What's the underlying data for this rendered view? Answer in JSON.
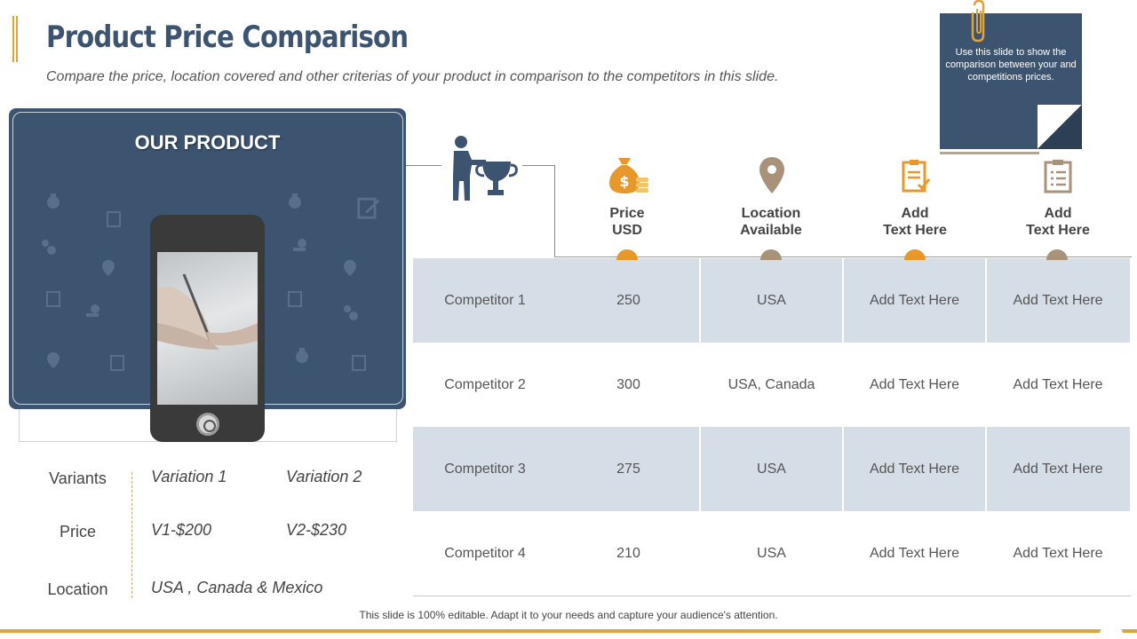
{
  "title": "Product Price Comparison",
  "subtitle": "Compare the price, location covered and other criterias of your product in comparison to the competitors in this slide.",
  "note": {
    "text": "Use this slide to show the comparison between your and competitions prices."
  },
  "product": {
    "title": "OUR PRODUCT",
    "rows": [
      {
        "label": "Variants",
        "values": [
          "Variation 1",
          "Variation 2"
        ]
      },
      {
        "label": "Price",
        "values": [
          "V1-$200",
          "V2-$230"
        ]
      },
      {
        "label": "Location",
        "values": [
          "USA , Canada & Mexico"
        ]
      }
    ]
  },
  "table": {
    "columns": [
      {
        "line1": "Price",
        "line2": "USD",
        "icon": "money-bag-icon"
      },
      {
        "line1": "Location",
        "line2": "Available",
        "icon": "location-pin-icon"
      },
      {
        "line1": "Add",
        "line2": "Text Here",
        "icon": "clipboard-check-icon"
      },
      {
        "line1": "Add",
        "line2": "Text Here",
        "icon": "clipboard-list-icon"
      }
    ],
    "rows": [
      [
        "Competitor 1",
        "250",
        "USA",
        "Add Text Here",
        "Add Text Here"
      ],
      [
        "Competitor 2",
        "300",
        "USA, Canada",
        "Add Text Here",
        "Add Text Here"
      ],
      [
        "Competitor 3",
        "275",
        "USA",
        "Add Text Here",
        "Add Text Here"
      ],
      [
        "Competitor 4",
        "210",
        "USA",
        "Add Text Here",
        "Add Text Here"
      ]
    ]
  },
  "footer": "This slide is 100% editable. Adapt it to your needs and capture your audience's attention.",
  "colors": {
    "navy": "#3d5470",
    "orange": "#e0a33c",
    "taupe": "#a8927a",
    "row_shade": "#d5dee6"
  }
}
